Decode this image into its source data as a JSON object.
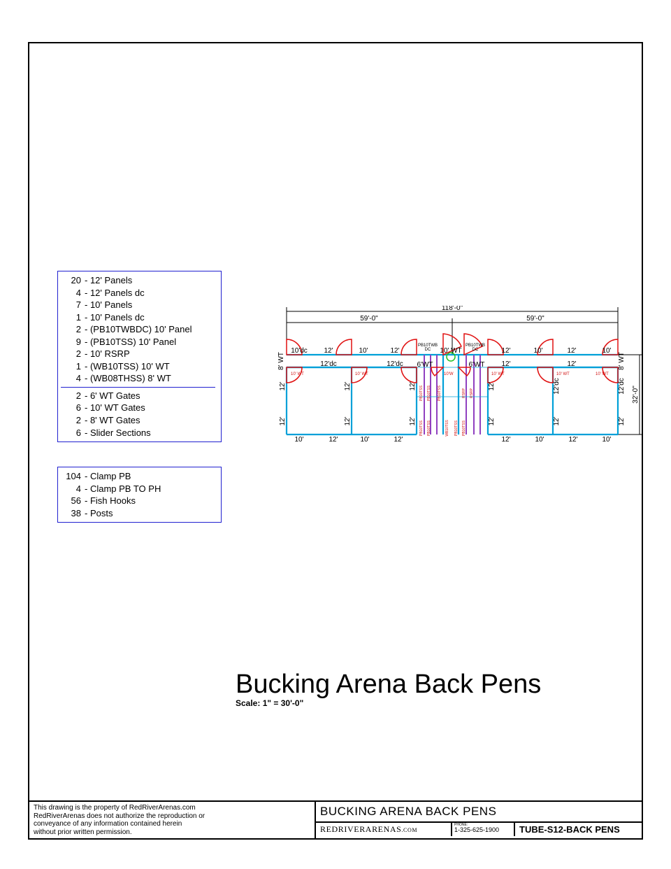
{
  "colors": {
    "frame": "#000000",
    "legend_border": "#2020d0",
    "panel": "#00a0d8",
    "chute": "#9040c0",
    "gate": "#e01010",
    "circle": "#20c020"
  },
  "title": "Bucking Arena Back Pens",
  "scale": "Scale: 1\" = 30'-0\"",
  "legend1": [
    {
      "qty": "20",
      "desc": "- 12' Panels"
    },
    {
      "qty": "4",
      "desc": "- 12' Panels dc"
    },
    {
      "qty": "7",
      "desc": "- 10' Panels"
    },
    {
      "qty": "1",
      "desc": "- 10' Panels dc"
    },
    {
      "qty": "2",
      "desc": "- (PB10TWBDC) 10' Panel"
    },
    {
      "qty": "9",
      "desc": "- (PB10TSS) 10' Panel"
    },
    {
      "qty": "2",
      "desc": "- 10' RSRP"
    },
    {
      "qty": "1",
      "desc": "- (WB10TSS) 10' WT"
    },
    {
      "qty": "4",
      "desc": "- (WB08THSS) 8' WT"
    }
  ],
  "legend1b": [
    {
      "qty": "2",
      "desc": "- 6' WT Gates"
    },
    {
      "qty": "6",
      "desc": "- 10' WT Gates"
    },
    {
      "qty": "2",
      "desc": "- 8' WT Gates"
    },
    {
      "qty": "6",
      "desc": "- Slider Sections"
    }
  ],
  "legend2": [
    {
      "qty": "104",
      "desc": "- Clamp PB"
    },
    {
      "qty": "4",
      "desc": "- Clamp PB TO PH"
    },
    {
      "qty": "56",
      "desc": "- Fish Hooks"
    },
    {
      "qty": "38",
      "desc": "- Posts"
    }
  ],
  "dimensions": {
    "total_width": "118'-0\"",
    "half_width": "59'-0\"",
    "total_height": "32'-0\""
  },
  "top_row_labels": [
    "10'dc",
    "12'",
    "10'",
    "12'",
    "",
    "10' WT",
    "",
    "12'",
    "10'",
    "12'",
    "10'"
  ],
  "mid_row_labels": [
    "12'dc",
    "12'dc",
    "6'WT",
    "6'WT",
    "12'",
    "12'"
  ],
  "bottom_row_labels": [
    "10'",
    "12'",
    "10'",
    "12'",
    "12'",
    "10'",
    "12'",
    "10'"
  ],
  "vertical_labels_left": [
    "12'",
    "12'",
    "12'",
    "12'",
    "12'dc",
    "12'dc"
  ],
  "gate_label": "10' WT",
  "chute_labels": {
    "top_left": "PB10TWB\nDC",
    "top_right": "PB10TWB\nDC",
    "side": [
      "PB10TSS",
      "PB10TSS",
      "PB10TSS",
      "PB10TSS",
      "WB10TSS",
      "PB10TSS",
      "RSRP",
      "RSRP"
    ]
  },
  "titleblock": {
    "disclaimer": "This drawing is the property of RedRiverArenas.com\nRedRiverArenas does not authorize the reproduction or\nconveyance of any information contained herein\nwithout prior written permission.",
    "title": "BUCKING ARENA BACK PENS",
    "company_a": "REDRIVERARENAS",
    "company_b": ".COM",
    "phone_label": "PHONE:",
    "phone": "1-325-625-1900",
    "code": "TUBE-S12-BACK PENS"
  },
  "wt_label": "8' WT"
}
